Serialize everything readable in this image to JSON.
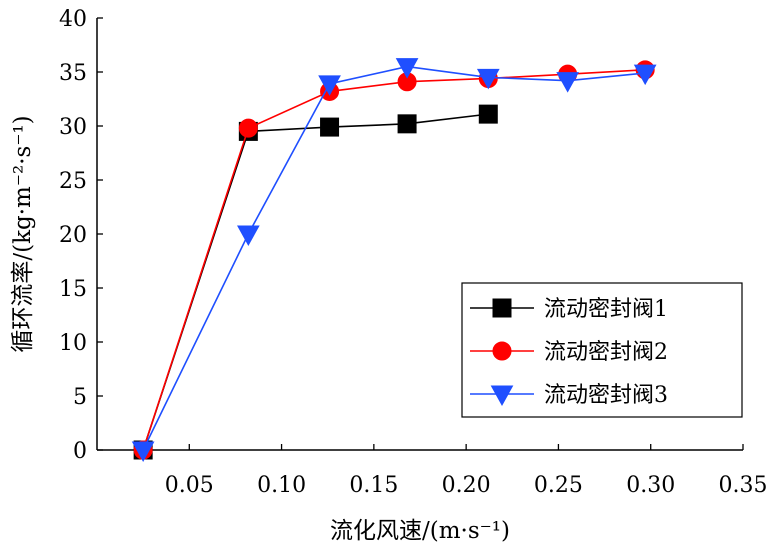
{
  "chart_data": {
    "type": "line",
    "xlabel": "流化风速/(m·s⁻¹)",
    "ylabel": "循环流率/(kg·m⁻²·s⁻¹)",
    "xlim": [
      0.0,
      0.35
    ],
    "ylim": [
      0,
      40
    ],
    "xticks": [
      0.05,
      0.1,
      0.15,
      0.2,
      0.25,
      0.3,
      0.35
    ],
    "xtick_labels": [
      "0.05",
      "0.10",
      "0.15",
      "0.20",
      "0.25",
      "0.30",
      "0.35"
    ],
    "yticks": [
      0,
      5,
      10,
      15,
      20,
      25,
      30,
      35,
      40
    ],
    "ytick_labels": [
      "0",
      "5",
      "10",
      "15",
      "20",
      "25",
      "30",
      "35",
      "40"
    ],
    "grid": false,
    "legend_position": "bottom-right",
    "series": [
      {
        "name": "流动密封阀1",
        "color": "#000000",
        "marker": "square",
        "x": [
          0.025,
          0.082,
          0.126,
          0.168,
          0.212
        ],
        "y": [
          0,
          29.5,
          29.9,
          30.2,
          31.1
        ]
      },
      {
        "name": "流动密封阀2",
        "color": "#ff0000",
        "marker": "circle",
        "x": [
          0.025,
          0.082,
          0.126,
          0.168,
          0.212,
          0.255,
          0.297
        ],
        "y": [
          0,
          29.8,
          33.2,
          34.1,
          34.4,
          34.8,
          35.2
        ]
      },
      {
        "name": "流动密封阀3",
        "color": "#1f4fff",
        "marker": "triangle-down",
        "x": [
          0.025,
          0.082,
          0.126,
          0.168,
          0.212,
          0.255,
          0.297
        ],
        "y": [
          0,
          20.0,
          33.9,
          35.5,
          34.5,
          34.2,
          34.9
        ]
      }
    ]
  }
}
